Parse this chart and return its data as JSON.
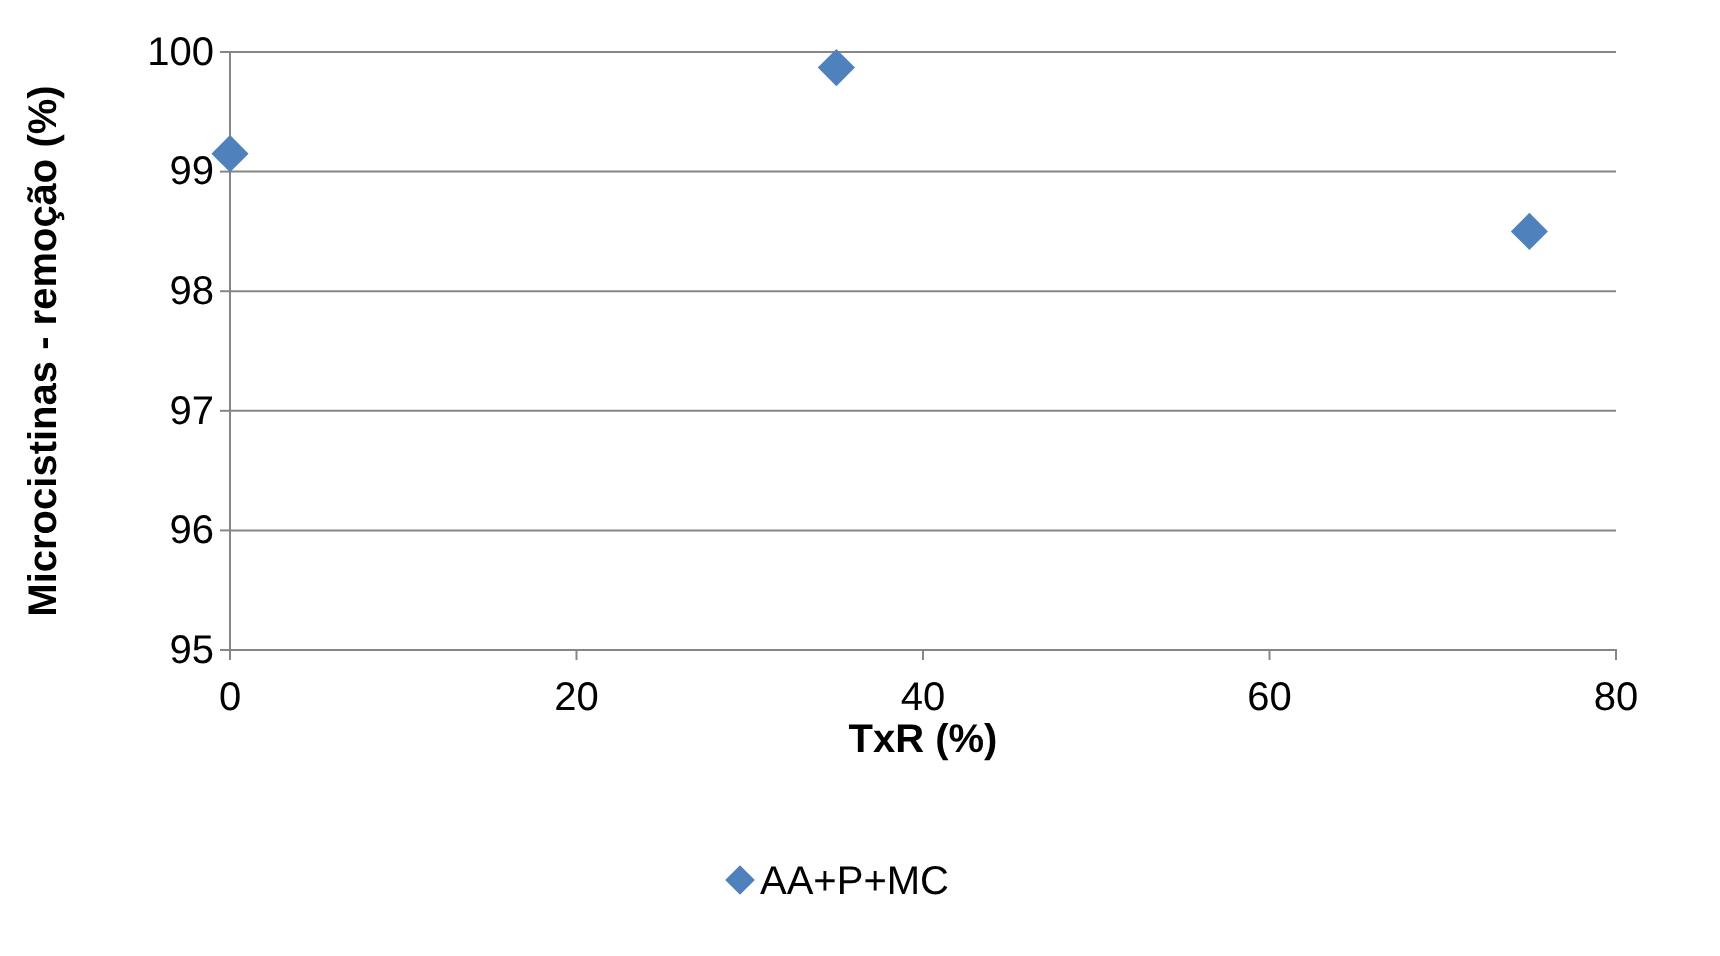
{
  "chart_data": {
    "type": "scatter",
    "xlabel": "TxR (%)",
    "ylabel": "Microcistinas - remoção (%)",
    "x": [
      0,
      35,
      75
    ],
    "series": [
      {
        "name": "AA+P+MC",
        "color": "#4f81bd",
        "values": [
          99.15,
          99.87,
          98.5
        ]
      }
    ],
    "xlim": [
      0,
      80
    ],
    "xticks": [
      0,
      20,
      40,
      60,
      80
    ],
    "ylim": [
      95,
      100
    ],
    "yticks": [
      95,
      96,
      97,
      98,
      99,
      100
    ],
    "grid": "y",
    "legend": "bottom",
    "marker": "diamond"
  }
}
